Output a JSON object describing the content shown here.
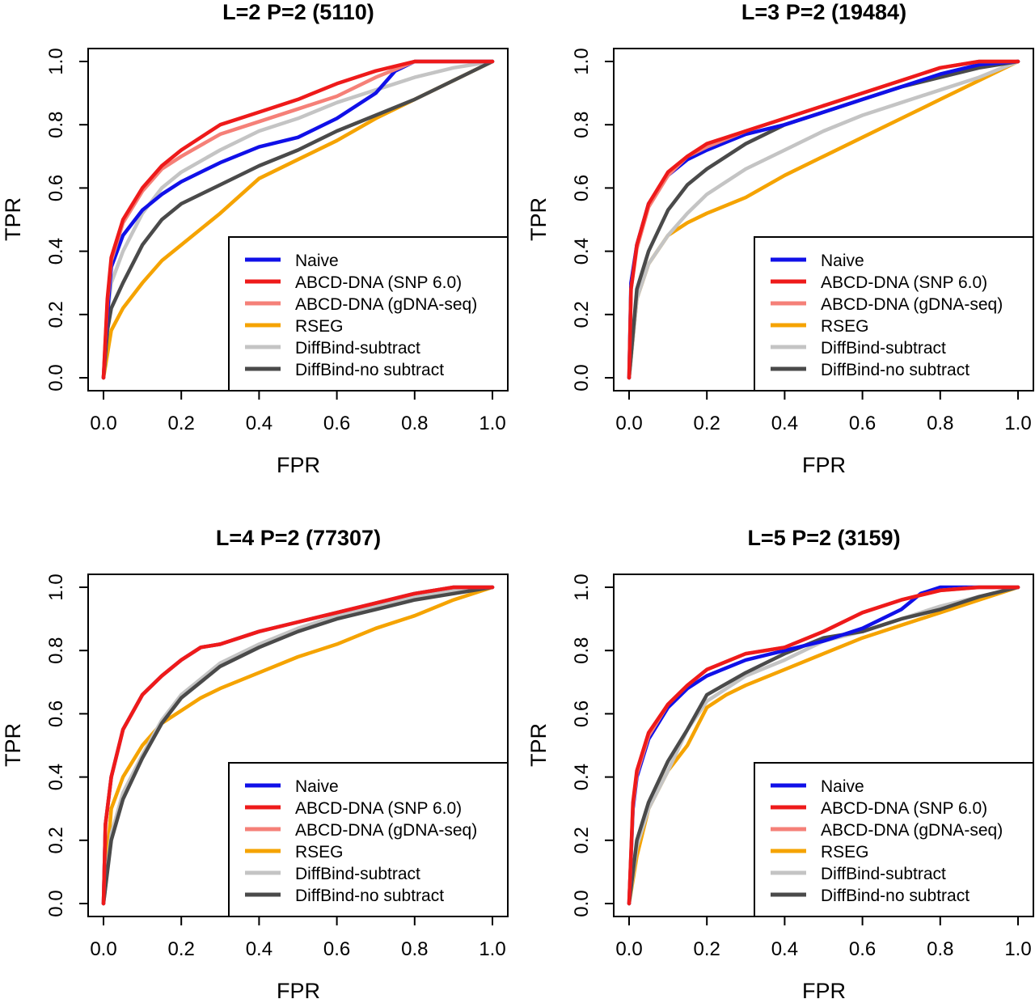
{
  "colors": {
    "naive": "#1010e8",
    "abcd_snp": "#ee1a1a",
    "abcd_gdna": "#f58078",
    "rseg": "#f5a300",
    "diffbind_subtract": "#c4c4c4",
    "diffbind_nosubtract": "#4a4a4a"
  },
  "chart_data": [
    {
      "type": "line",
      "title": "L=2 P=2 (5110)",
      "xlabel": "FPR",
      "ylabel": "TPR",
      "xlim": [
        0,
        1
      ],
      "ylim": [
        0,
        1
      ],
      "xticks": [
        "0.0",
        "0.2",
        "0.4",
        "0.6",
        "0.8",
        "1.0"
      ],
      "yticks": [
        "0.0",
        "0.2",
        "0.4",
        "0.6",
        "0.8",
        "1.0"
      ],
      "legend_position": "bottom-right",
      "grid": false,
      "series": [
        {
          "name": "Naive",
          "color_key": "naive",
          "x": [
            0,
            0.01,
            0.02,
            0.05,
            0.1,
            0.15,
            0.2,
            0.3,
            0.4,
            0.5,
            0.6,
            0.7,
            0.75,
            0.8,
            0.9,
            1.0
          ],
          "y": [
            0,
            0.2,
            0.35,
            0.45,
            0.53,
            0.58,
            0.62,
            0.68,
            0.73,
            0.76,
            0.82,
            0.9,
            0.97,
            1.0,
            1.0,
            1.0
          ]
        },
        {
          "name": "ABCD-DNA (SNP 6.0)",
          "color_key": "abcd_snp",
          "x": [
            0,
            0.01,
            0.02,
            0.05,
            0.1,
            0.15,
            0.2,
            0.3,
            0.4,
            0.5,
            0.6,
            0.7,
            0.8,
            0.9,
            1.0
          ],
          "y": [
            0,
            0.25,
            0.38,
            0.5,
            0.6,
            0.67,
            0.72,
            0.8,
            0.84,
            0.88,
            0.93,
            0.97,
            1.0,
            1.0,
            1.0
          ]
        },
        {
          "name": "ABCD-DNA (gDNA-seq)",
          "color_key": "abcd_gdna",
          "x": [
            0,
            0.01,
            0.02,
            0.05,
            0.1,
            0.15,
            0.2,
            0.3,
            0.4,
            0.5,
            0.6,
            0.7,
            0.8,
            0.9,
            1.0
          ],
          "y": [
            0,
            0.24,
            0.37,
            0.49,
            0.59,
            0.66,
            0.7,
            0.77,
            0.81,
            0.85,
            0.89,
            0.95,
            1.0,
            1.0,
            1.0
          ]
        },
        {
          "name": "RSEG",
          "color_key": "rseg",
          "x": [
            0,
            0.02,
            0.05,
            0.1,
            0.15,
            0.2,
            0.3,
            0.4,
            0.5,
            0.6,
            0.7,
            0.8,
            0.9,
            1.0
          ],
          "y": [
            0,
            0.15,
            0.22,
            0.3,
            0.37,
            0.42,
            0.52,
            0.63,
            0.69,
            0.75,
            0.82,
            0.88,
            0.94,
            1.0
          ]
        },
        {
          "name": "DiffBind-subtract",
          "color_key": "diffbind_subtract",
          "x": [
            0,
            0.01,
            0.02,
            0.05,
            0.1,
            0.15,
            0.2,
            0.3,
            0.4,
            0.5,
            0.6,
            0.7,
            0.8,
            0.9,
            1.0
          ],
          "y": [
            0,
            0.2,
            0.3,
            0.4,
            0.52,
            0.6,
            0.65,
            0.72,
            0.78,
            0.82,
            0.87,
            0.91,
            0.95,
            0.98,
            1.0
          ]
        },
        {
          "name": "DiffBind-no subtract",
          "color_key": "diffbind_nosubtract",
          "x": [
            0,
            0.01,
            0.02,
            0.05,
            0.1,
            0.15,
            0.2,
            0.3,
            0.4,
            0.5,
            0.6,
            0.7,
            0.8,
            0.9,
            1.0
          ],
          "y": [
            0,
            0.15,
            0.22,
            0.3,
            0.42,
            0.5,
            0.55,
            0.61,
            0.67,
            0.72,
            0.78,
            0.83,
            0.88,
            0.94,
            1.0
          ]
        }
      ]
    },
    {
      "type": "line",
      "title": "L=3 P=2 (19484)",
      "xlabel": "FPR",
      "ylabel": "TPR",
      "xlim": [
        0,
        1
      ],
      "ylim": [
        0,
        1
      ],
      "xticks": [
        "0.0",
        "0.2",
        "0.4",
        "0.6",
        "0.8",
        "1.0"
      ],
      "yticks": [
        "0.0",
        "0.2",
        "0.4",
        "0.6",
        "0.8",
        "1.0"
      ],
      "legend_position": "bottom-right",
      "grid": false,
      "series": [
        {
          "name": "Naive",
          "color_key": "naive",
          "x": [
            0,
            0.005,
            0.02,
            0.05,
            0.1,
            0.15,
            0.2,
            0.3,
            0.4,
            0.5,
            0.6,
            0.7,
            0.8,
            0.9,
            1.0
          ],
          "y": [
            0,
            0.3,
            0.42,
            0.55,
            0.64,
            0.69,
            0.72,
            0.77,
            0.8,
            0.84,
            0.88,
            0.92,
            0.96,
            0.99,
            1.0
          ]
        },
        {
          "name": "ABCD-DNA (SNP 6.0)",
          "color_key": "abcd_snp",
          "x": [
            0,
            0.005,
            0.02,
            0.05,
            0.1,
            0.15,
            0.2,
            0.3,
            0.4,
            0.5,
            0.6,
            0.7,
            0.8,
            0.9,
            1.0
          ],
          "y": [
            0,
            0.28,
            0.42,
            0.55,
            0.65,
            0.7,
            0.74,
            0.78,
            0.82,
            0.86,
            0.9,
            0.94,
            0.98,
            1.0,
            1.0
          ]
        },
        {
          "name": "ABCD-DNA (gDNA-seq)",
          "color_key": "abcd_gdna",
          "x": [
            0,
            0.005,
            0.02,
            0.05,
            0.1,
            0.15,
            0.2,
            0.3,
            0.4,
            0.5,
            0.6,
            0.7,
            0.8,
            0.9,
            1.0
          ],
          "y": [
            0,
            0.28,
            0.41,
            0.54,
            0.64,
            0.7,
            0.73,
            0.78,
            0.82,
            0.86,
            0.9,
            0.94,
            0.98,
            1.0,
            1.0
          ]
        },
        {
          "name": "RSEG",
          "color_key": "rseg",
          "x": [
            0,
            0.02,
            0.05,
            0.1,
            0.15,
            0.2,
            0.3,
            0.4,
            0.5,
            0.6,
            0.7,
            0.8,
            0.9,
            1.0
          ],
          "y": [
            0,
            0.25,
            0.36,
            0.45,
            0.49,
            0.52,
            0.57,
            0.64,
            0.7,
            0.76,
            0.82,
            0.88,
            0.94,
            1.0
          ]
        },
        {
          "name": "DiffBind-subtract",
          "color_key": "diffbind_subtract",
          "x": [
            0,
            0.02,
            0.05,
            0.1,
            0.15,
            0.2,
            0.3,
            0.4,
            0.5,
            0.6,
            0.7,
            0.8,
            0.9,
            1.0
          ],
          "y": [
            0,
            0.25,
            0.36,
            0.45,
            0.52,
            0.58,
            0.66,
            0.72,
            0.78,
            0.83,
            0.87,
            0.91,
            0.95,
            1.0
          ]
        },
        {
          "name": "DiffBind-no subtract",
          "color_key": "diffbind_nosubtract",
          "x": [
            0,
            0.02,
            0.05,
            0.1,
            0.15,
            0.2,
            0.3,
            0.4,
            0.5,
            0.6,
            0.7,
            0.8,
            0.9,
            1.0
          ],
          "y": [
            0,
            0.28,
            0.4,
            0.53,
            0.61,
            0.66,
            0.74,
            0.8,
            0.84,
            0.88,
            0.92,
            0.95,
            0.98,
            1.0
          ]
        }
      ]
    },
    {
      "type": "line",
      "title": "L=4 P=2 (77307)",
      "xlabel": "FPR",
      "ylabel": "TPR",
      "xlim": [
        0,
        1
      ],
      "ylim": [
        0,
        1
      ],
      "xticks": [
        "0.0",
        "0.2",
        "0.4",
        "0.6",
        "0.8",
        "1.0"
      ],
      "yticks": [
        "0.0",
        "0.2",
        "0.4",
        "0.6",
        "0.8",
        "1.0"
      ],
      "legend_position": "bottom-right",
      "grid": false,
      "series": [
        {
          "name": "Naive",
          "color_key": "naive",
          "x": [
            0,
            0.005,
            0.02,
            0.05,
            0.1,
            0.15,
            0.2,
            0.25,
            0.3,
            0.4,
            0.5,
            0.6,
            0.7,
            0.8,
            0.9,
            1.0
          ],
          "y": [
            0,
            0.25,
            0.4,
            0.55,
            0.66,
            0.72,
            0.77,
            0.81,
            0.82,
            0.86,
            0.89,
            0.92,
            0.95,
            0.98,
            1.0,
            1.0
          ]
        },
        {
          "name": "ABCD-DNA (SNP 6.0)",
          "color_key": "abcd_snp",
          "x": [
            0,
            0.005,
            0.02,
            0.05,
            0.1,
            0.15,
            0.2,
            0.25,
            0.3,
            0.4,
            0.5,
            0.6,
            0.7,
            0.8,
            0.9,
            1.0
          ],
          "y": [
            0,
            0.25,
            0.4,
            0.55,
            0.66,
            0.72,
            0.77,
            0.81,
            0.82,
            0.86,
            0.89,
            0.92,
            0.95,
            0.98,
            1.0,
            1.0
          ]
        },
        {
          "name": "ABCD-DNA (gDNA-seq)",
          "color_key": "abcd_gdna",
          "x": [
            0,
            0.005,
            0.02,
            0.05,
            0.1,
            0.15,
            0.2,
            0.25,
            0.3,
            0.4,
            0.5,
            0.6,
            0.7,
            0.8,
            0.9,
            1.0
          ],
          "y": [
            0,
            0.25,
            0.4,
            0.55,
            0.66,
            0.72,
            0.77,
            0.81,
            0.82,
            0.86,
            0.89,
            0.92,
            0.95,
            0.98,
            1.0,
            1.0
          ]
        },
        {
          "name": "RSEG",
          "color_key": "rseg",
          "x": [
            0,
            0.02,
            0.05,
            0.1,
            0.15,
            0.2,
            0.25,
            0.3,
            0.4,
            0.5,
            0.6,
            0.7,
            0.8,
            0.9,
            1.0
          ],
          "y": [
            0,
            0.3,
            0.4,
            0.5,
            0.57,
            0.61,
            0.65,
            0.68,
            0.73,
            0.78,
            0.82,
            0.87,
            0.91,
            0.96,
            1.0
          ]
        },
        {
          "name": "DiffBind-subtract",
          "color_key": "diffbind_subtract",
          "x": [
            0,
            0.02,
            0.05,
            0.1,
            0.15,
            0.2,
            0.3,
            0.4,
            0.5,
            0.6,
            0.7,
            0.8,
            0.9,
            1.0
          ],
          "y": [
            0,
            0.22,
            0.35,
            0.47,
            0.58,
            0.66,
            0.76,
            0.82,
            0.87,
            0.91,
            0.94,
            0.97,
            0.99,
            1.0
          ]
        },
        {
          "name": "DiffBind-no subtract",
          "color_key": "diffbind_nosubtract",
          "x": [
            0,
            0.02,
            0.05,
            0.1,
            0.15,
            0.2,
            0.3,
            0.4,
            0.5,
            0.6,
            0.7,
            0.8,
            0.9,
            1.0
          ],
          "y": [
            0,
            0.2,
            0.33,
            0.46,
            0.57,
            0.65,
            0.75,
            0.81,
            0.86,
            0.9,
            0.93,
            0.96,
            0.98,
            1.0
          ]
        }
      ]
    },
    {
      "type": "line",
      "title": "L=5 P=2 (3159)",
      "xlabel": "FPR",
      "ylabel": "TPR",
      "xlim": [
        0,
        1
      ],
      "ylim": [
        0,
        1
      ],
      "xticks": [
        "0.0",
        "0.2",
        "0.4",
        "0.6",
        "0.8",
        "1.0"
      ],
      "yticks": [
        "0.0",
        "0.2",
        "0.4",
        "0.6",
        "0.8",
        "1.0"
      ],
      "legend_position": "bottom-right",
      "grid": false,
      "series": [
        {
          "name": "Naive",
          "color_key": "naive",
          "x": [
            0,
            0.01,
            0.02,
            0.05,
            0.1,
            0.15,
            0.2,
            0.3,
            0.4,
            0.5,
            0.6,
            0.7,
            0.75,
            0.8,
            0.9,
            1.0
          ],
          "y": [
            0,
            0.3,
            0.4,
            0.52,
            0.62,
            0.68,
            0.72,
            0.77,
            0.8,
            0.83,
            0.87,
            0.93,
            0.98,
            1.0,
            1.0,
            1.0
          ]
        },
        {
          "name": "ABCD-DNA (SNP 6.0)",
          "color_key": "abcd_snp",
          "x": [
            0,
            0.01,
            0.02,
            0.05,
            0.1,
            0.15,
            0.2,
            0.3,
            0.4,
            0.5,
            0.6,
            0.7,
            0.8,
            0.9,
            1.0
          ],
          "y": [
            0,
            0.32,
            0.42,
            0.54,
            0.63,
            0.69,
            0.74,
            0.79,
            0.81,
            0.86,
            0.92,
            0.96,
            0.99,
            1.0,
            1.0
          ]
        },
        {
          "name": "ABCD-DNA (gDNA-seq)",
          "color_key": "abcd_gdna",
          "x": [
            0,
            0.01,
            0.02,
            0.05,
            0.1,
            0.15,
            0.2,
            0.3,
            0.4,
            0.5,
            0.6,
            0.7,
            0.8,
            0.9,
            1.0
          ],
          "y": [
            0,
            0.31,
            0.41,
            0.53,
            0.63,
            0.69,
            0.74,
            0.79,
            0.81,
            0.86,
            0.92,
            0.96,
            0.99,
            1.0,
            1.0
          ]
        },
        {
          "name": "RSEG",
          "color_key": "rseg",
          "x": [
            0,
            0.02,
            0.05,
            0.1,
            0.15,
            0.2,
            0.25,
            0.3,
            0.4,
            0.5,
            0.6,
            0.7,
            0.8,
            0.9,
            1.0
          ],
          "y": [
            0,
            0.15,
            0.3,
            0.42,
            0.5,
            0.62,
            0.66,
            0.69,
            0.74,
            0.79,
            0.84,
            0.88,
            0.92,
            0.96,
            1.0
          ]
        },
        {
          "name": "DiffBind-subtract",
          "color_key": "diffbind_subtract",
          "x": [
            0,
            0.02,
            0.05,
            0.1,
            0.15,
            0.2,
            0.3,
            0.4,
            0.5,
            0.6,
            0.7,
            0.8,
            0.9,
            1.0
          ],
          "y": [
            0,
            0.18,
            0.3,
            0.42,
            0.55,
            0.64,
            0.72,
            0.77,
            0.83,
            0.86,
            0.9,
            0.94,
            0.97,
            1.0
          ]
        },
        {
          "name": "DiffBind-no subtract",
          "color_key": "diffbind_nosubtract",
          "x": [
            0,
            0.02,
            0.05,
            0.1,
            0.15,
            0.2,
            0.3,
            0.4,
            0.5,
            0.6,
            0.7,
            0.8,
            0.9,
            1.0
          ],
          "y": [
            0,
            0.2,
            0.32,
            0.45,
            0.55,
            0.66,
            0.73,
            0.79,
            0.84,
            0.86,
            0.9,
            0.93,
            0.97,
            1.0
          ]
        }
      ]
    }
  ]
}
